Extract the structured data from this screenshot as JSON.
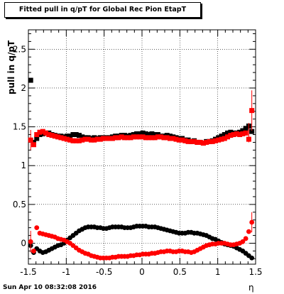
{
  "header": {
    "title": "Fitted pull in q/pT for Global Rec Pion EtapT"
  },
  "footer": {
    "timestamp": "Sun Apr 10 08:32:08 2016"
  },
  "chart_data": {
    "type": "scatter",
    "title": "Fitted pull in q/pT for Global Rec Pion EtapT",
    "xlabel": "η",
    "ylabel": "pull in q/pT",
    "xlim": [
      -1.5,
      1.5
    ],
    "ylim": [
      -0.27,
      2.75
    ],
    "x_ticks": [
      "-1.5",
      "-1",
      "-0.5",
      "0",
      "0.5",
      "1",
      "1.5"
    ],
    "y_ticks": [
      "0",
      "0.5",
      "1",
      "1.5",
      "2",
      "2.5"
    ],
    "x_tick_values": [
      -1.5,
      -1,
      -0.5,
      0,
      0.5,
      1,
      1.5
    ],
    "y_tick_values": [
      0,
      0.5,
      1,
      1.5,
      2,
      2.5
    ],
    "grid": true,
    "series_upper": [
      {
        "color": "#000000",
        "marker": "square",
        "x": [
          -1.47,
          -1.43,
          -1.39,
          -1.35,
          -1.31,
          -1.27,
          -1.23,
          -1.19,
          -1.15,
          -1.11,
          -1.07,
          -1.03,
          -0.99,
          -0.95,
          -0.91,
          -0.87,
          -0.83,
          -0.79,
          -0.75,
          -0.71,
          -0.67,
          -0.63,
          -0.59,
          -0.55,
          -0.51,
          -0.47,
          -0.43,
          -0.39,
          -0.35,
          -0.31,
          -0.27,
          -0.23,
          -0.19,
          -0.15,
          -0.11,
          -0.07,
          -0.03,
          0.01,
          0.05,
          0.09,
          0.13,
          0.17,
          0.21,
          0.25,
          0.29,
          0.33,
          0.37,
          0.41,
          0.45,
          0.49,
          0.53,
          0.57,
          0.61,
          0.65,
          0.69,
          0.73,
          0.77,
          0.81,
          0.85,
          0.89,
          0.93,
          0.97,
          1.01,
          1.05,
          1.09,
          1.13,
          1.17,
          1.21,
          1.25,
          1.29,
          1.33,
          1.37,
          1.41,
          1.45
        ],
        "y": [
          2.1,
          1.3,
          1.35,
          1.4,
          1.41,
          1.42,
          1.42,
          1.4,
          1.39,
          1.38,
          1.38,
          1.37,
          1.38,
          1.38,
          1.4,
          1.4,
          1.39,
          1.37,
          1.36,
          1.36,
          1.35,
          1.36,
          1.35,
          1.36,
          1.36,
          1.36,
          1.36,
          1.37,
          1.38,
          1.38,
          1.39,
          1.39,
          1.38,
          1.39,
          1.4,
          1.41,
          1.41,
          1.42,
          1.41,
          1.4,
          1.41,
          1.4,
          1.4,
          1.38,
          1.38,
          1.39,
          1.38,
          1.37,
          1.36,
          1.35,
          1.35,
          1.33,
          1.33,
          1.31,
          1.32,
          1.3,
          1.3,
          1.29,
          1.31,
          1.31,
          1.32,
          1.34,
          1.36,
          1.38,
          1.4,
          1.42,
          1.43,
          1.42,
          1.42,
          1.43,
          1.45,
          1.48,
          1.51,
          1.44
        ]
      },
      {
        "color": "#ff0000",
        "marker": "square",
        "x": [
          -1.47,
          -1.43,
          -1.39,
          -1.35,
          -1.31,
          -1.27,
          -1.23,
          -1.19,
          -1.15,
          -1.11,
          -1.07,
          -1.03,
          -0.99,
          -0.95,
          -0.91,
          -0.87,
          -0.83,
          -0.79,
          -0.75,
          -0.71,
          -0.67,
          -0.63,
          -0.59,
          -0.55,
          -0.51,
          -0.47,
          -0.43,
          -0.39,
          -0.35,
          -0.31,
          -0.27,
          -0.23,
          -0.19,
          -0.15,
          -0.11,
          -0.07,
          -0.03,
          0.01,
          0.05,
          0.09,
          0.13,
          0.17,
          0.21,
          0.25,
          0.29,
          0.33,
          0.37,
          0.41,
          0.45,
          0.49,
          0.53,
          0.57,
          0.61,
          0.65,
          0.69,
          0.73,
          0.77,
          0.81,
          0.85,
          0.89,
          0.93,
          0.97,
          1.01,
          1.05,
          1.09,
          1.13,
          1.17,
          1.21,
          1.25,
          1.29,
          1.33,
          1.37,
          1.41,
          1.45
        ],
        "y": [
          1.33,
          1.27,
          1.4,
          1.43,
          1.44,
          1.42,
          1.4,
          1.39,
          1.38,
          1.37,
          1.36,
          1.35,
          1.34,
          1.33,
          1.32,
          1.32,
          1.32,
          1.33,
          1.34,
          1.34,
          1.33,
          1.33,
          1.34,
          1.34,
          1.35,
          1.35,
          1.35,
          1.35,
          1.36,
          1.36,
          1.37,
          1.36,
          1.36,
          1.36,
          1.37,
          1.37,
          1.37,
          1.37,
          1.36,
          1.36,
          1.36,
          1.36,
          1.37,
          1.37,
          1.36,
          1.36,
          1.35,
          1.35,
          1.34,
          1.33,
          1.33,
          1.32,
          1.31,
          1.31,
          1.31,
          1.3,
          1.3,
          1.29,
          1.3,
          1.31,
          1.31,
          1.32,
          1.33,
          1.34,
          1.35,
          1.37,
          1.39,
          1.4,
          1.41,
          1.4,
          1.41,
          1.42,
          1.34,
          1.71
        ]
      }
    ],
    "series_lower": [
      {
        "color": "#000000",
        "marker": "circle",
        "x": [
          -1.47,
          -1.43,
          -1.39,
          -1.35,
          -1.31,
          -1.27,
          -1.23,
          -1.19,
          -1.15,
          -1.11,
          -1.07,
          -1.03,
          -0.99,
          -0.95,
          -0.91,
          -0.87,
          -0.83,
          -0.79,
          -0.75,
          -0.71,
          -0.67,
          -0.63,
          -0.59,
          -0.55,
          -0.51,
          -0.47,
          -0.43,
          -0.39,
          -0.35,
          -0.31,
          -0.27,
          -0.23,
          -0.19,
          -0.15,
          -0.11,
          -0.07,
          -0.03,
          0.01,
          0.05,
          0.09,
          0.13,
          0.17,
          0.21,
          0.25,
          0.29,
          0.33,
          0.37,
          0.41,
          0.45,
          0.49,
          0.53,
          0.57,
          0.61,
          0.65,
          0.69,
          0.73,
          0.77,
          0.81,
          0.85,
          0.89,
          0.93,
          0.97,
          1.01,
          1.05,
          1.09,
          1.13,
          1.17,
          1.21,
          1.25,
          1.29,
          1.33,
          1.37,
          1.41,
          1.45
        ],
        "y": [
          -0.03,
          -0.12,
          -0.07,
          -0.1,
          -0.12,
          -0.11,
          -0.09,
          -0.07,
          -0.05,
          -0.03,
          -0.02,
          0.0,
          0.04,
          0.07,
          0.1,
          0.13,
          0.16,
          0.18,
          0.2,
          0.21,
          0.21,
          0.21,
          0.2,
          0.2,
          0.19,
          0.19,
          0.2,
          0.21,
          0.21,
          0.21,
          0.21,
          0.2,
          0.2,
          0.2,
          0.21,
          0.22,
          0.22,
          0.22,
          0.22,
          0.21,
          0.21,
          0.21,
          0.2,
          0.19,
          0.18,
          0.17,
          0.16,
          0.15,
          0.14,
          0.13,
          0.13,
          0.13,
          0.14,
          0.14,
          0.13,
          0.13,
          0.12,
          0.11,
          0.1,
          0.08,
          0.06,
          0.05,
          0.03,
          0.01,
          -0.01,
          -0.02,
          -0.03,
          -0.04,
          -0.06,
          -0.08,
          -0.1,
          -0.13,
          -0.16,
          -0.19
        ]
      },
      {
        "color": "#ff0000",
        "marker": "circle",
        "x": [
          -1.47,
          -1.43,
          -1.39,
          -1.35,
          -1.31,
          -1.27,
          -1.23,
          -1.19,
          -1.15,
          -1.11,
          -1.07,
          -1.03,
          -0.99,
          -0.95,
          -0.91,
          -0.87,
          -0.83,
          -0.79,
          -0.75,
          -0.71,
          -0.67,
          -0.63,
          -0.59,
          -0.55,
          -0.51,
          -0.47,
          -0.43,
          -0.39,
          -0.35,
          -0.31,
          -0.27,
          -0.23,
          -0.19,
          -0.15,
          -0.11,
          -0.07,
          -0.03,
          0.01,
          0.05,
          0.09,
          0.13,
          0.17,
          0.21,
          0.25,
          0.29,
          0.33,
          0.37,
          0.41,
          0.45,
          0.49,
          0.53,
          0.57,
          0.61,
          0.65,
          0.69,
          0.73,
          0.77,
          0.81,
          0.85,
          0.89,
          0.93,
          0.97,
          1.01,
          1.05,
          1.09,
          1.13,
          1.17,
          1.21,
          1.25,
          1.29,
          1.33,
          1.37,
          1.41,
          1.45
        ],
        "y": [
          0.02,
          -0.1,
          0.2,
          0.13,
          0.12,
          0.11,
          0.1,
          0.09,
          0.08,
          0.06,
          0.05,
          0.04,
          0.02,
          0.0,
          -0.03,
          -0.06,
          -0.09,
          -0.11,
          -0.13,
          -0.14,
          -0.16,
          -0.17,
          -0.18,
          -0.19,
          -0.19,
          -0.19,
          -0.19,
          -0.18,
          -0.18,
          -0.17,
          -0.17,
          -0.17,
          -0.17,
          -0.16,
          -0.16,
          -0.15,
          -0.15,
          -0.14,
          -0.14,
          -0.14,
          -0.13,
          -0.13,
          -0.12,
          -0.11,
          -0.11,
          -0.1,
          -0.1,
          -0.11,
          -0.11,
          -0.1,
          -0.1,
          -0.11,
          -0.11,
          -0.12,
          -0.11,
          -0.09,
          -0.07,
          -0.05,
          -0.03,
          -0.02,
          -0.01,
          -0.01,
          0.0,
          0.0,
          0.0,
          -0.01,
          -0.02,
          -0.02,
          -0.01,
          0.0,
          0.02,
          0.06,
          0.15,
          0.27
        ]
      }
    ]
  }
}
